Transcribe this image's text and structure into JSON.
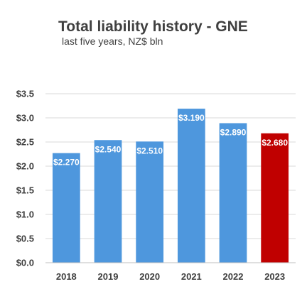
{
  "chart_data": {
    "type": "bar",
    "title": "Total liability history - GNE",
    "subtitle": "last five years, NZ$ bln",
    "categories": [
      "2018",
      "2019",
      "2020",
      "2021",
      "2022",
      "2023"
    ],
    "values": [
      2.27,
      2.54,
      2.51,
      3.19,
      2.89,
      2.68
    ],
    "data_labels": [
      "$2.270",
      "$2.540",
      "$2.510",
      "$3.190",
      "$2.890",
      "$2.680"
    ],
    "colors": [
      "#4e97dd",
      "#4e97dd",
      "#4e97dd",
      "#4e97dd",
      "#4e97dd",
      "#c00000"
    ],
    "ylim": [
      0,
      3.5
    ],
    "yticks": [
      0.0,
      0.5,
      1.0,
      1.5,
      2.0,
      2.5,
      3.0,
      3.5
    ],
    "ytick_labels": [
      "$0.0",
      "$0.5",
      "$1.0",
      "$1.5",
      "$2.0",
      "$2.5",
      "$3.0",
      "$3.5"
    ],
    "xlabel": "",
    "ylabel": "",
    "grid": true,
    "legend": "none"
  }
}
